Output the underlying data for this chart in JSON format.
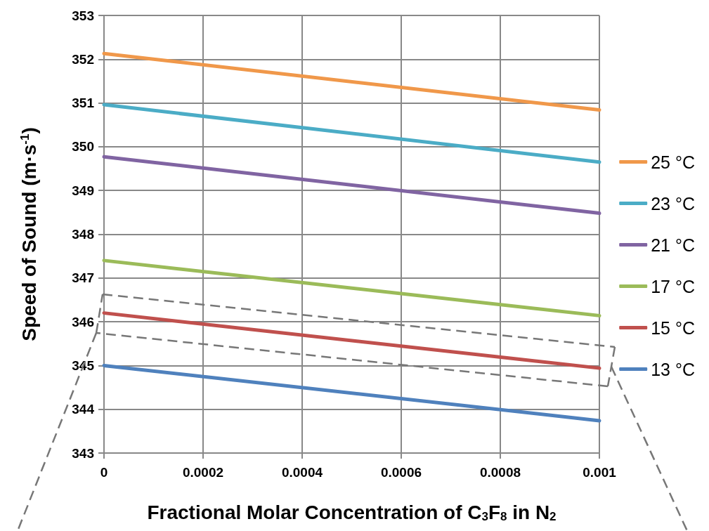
{
  "chart_data": {
    "type": "line",
    "xlabel": "Fractional Molar Concentration of C$_{3}$F$_{8}$ in N$_{2}$",
    "ylabel": "Speed of Sound (m·s$^{-1}$)",
    "xlim": [
      0,
      0.001
    ],
    "xticks": [
      0,
      0.0002,
      0.0004,
      0.0006,
      0.0008,
      0.001
    ],
    "ylim": [
      343,
      353
    ],
    "yticks": [
      343,
      344,
      345,
      346,
      347,
      348,
      349,
      350,
      351,
      352,
      353
    ],
    "grid": true,
    "legend": "right",
    "marker": "none",
    "line_style": "solid",
    "x": [
      0,
      0.001
    ],
    "series": [
      {
        "name": "25 °C",
        "color": "#f0984a",
        "values": [
          352.13,
          350.84
        ]
      },
      {
        "name": "23 °C",
        "color": "#4bacc6",
        "values": [
          350.96,
          349.65
        ]
      },
      {
        "name": "21 °C",
        "color": "#8064a2",
        "values": [
          349.77,
          348.48
        ]
      },
      {
        "name": "17 °C",
        "color": "#9bbb59",
        "values": [
          347.4,
          346.14
        ]
      },
      {
        "name": "15 °C",
        "color": "#c0504d",
        "values": [
          346.2,
          344.94
        ]
      },
      {
        "name": "13 °C",
        "color": "#4f81bd",
        "values": [
          345.0,
          343.74
        ]
      }
    ]
  }
}
